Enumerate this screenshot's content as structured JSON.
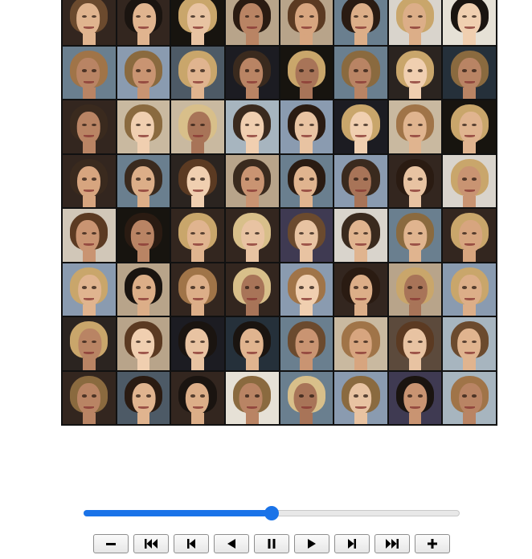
{
  "animation": {
    "image": "generated-face-samples-grid",
    "grid": {
      "rows": 8,
      "cols": 8
    },
    "slider": {
      "position_fraction": 0.5,
      "accent_color": "#1a73e8"
    },
    "buttons": [
      {
        "name": "decrease-speed-button",
        "icon": "minus-icon"
      },
      {
        "name": "first-frame-button",
        "icon": "skip-to-start-icon"
      },
      {
        "name": "previous-frame-button",
        "icon": "step-back-icon"
      },
      {
        "name": "play-reverse-button",
        "icon": "play-reverse-icon"
      },
      {
        "name": "pause-button",
        "icon": "pause-icon"
      },
      {
        "name": "play-button",
        "icon": "play-icon"
      },
      {
        "name": "next-frame-button",
        "icon": "step-forward-icon"
      },
      {
        "name": "last-frame-button",
        "icon": "skip-to-end-icon"
      },
      {
        "name": "increase-speed-button",
        "icon": "plus-icon"
      }
    ]
  }
}
